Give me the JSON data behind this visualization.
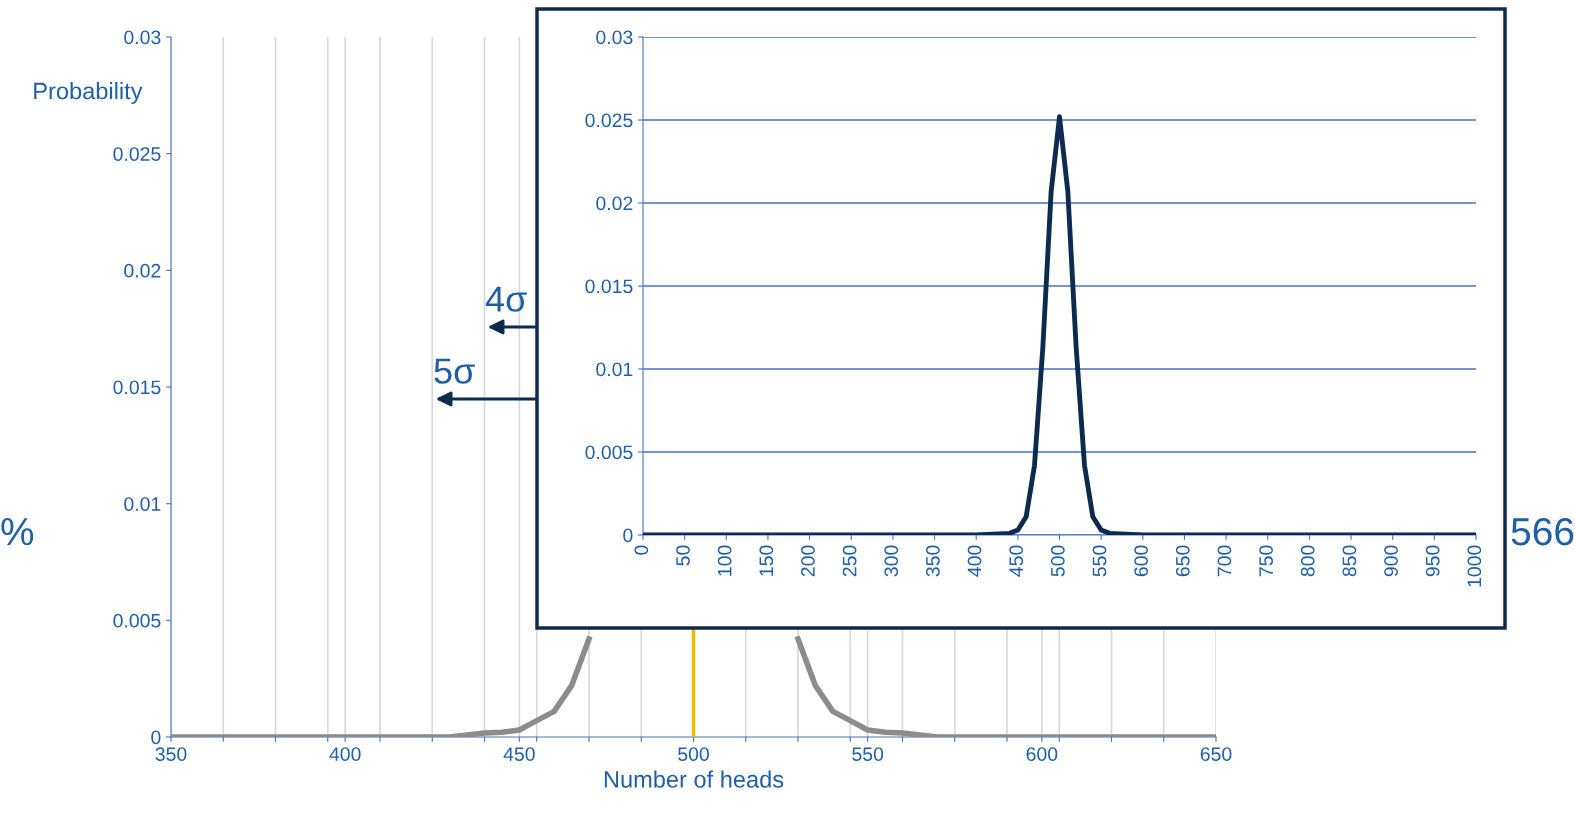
{
  "chart_data": [
    {
      "type": "line",
      "xlabel": "Number of heads",
      "ylabel": "Probability",
      "grid": "x",
      "legend": false,
      "x": [
        350,
        400,
        430,
        440,
        445,
        450,
        455,
        460,
        465,
        470,
        475,
        480,
        485,
        490,
        495,
        500,
        505,
        510,
        515,
        520,
        525,
        530,
        535,
        540,
        545,
        550,
        555,
        560,
        570,
        600,
        650
      ],
      "series": [
        {
          "color": "#8c8c8c",
          "values": [
            0,
            0,
            0,
            0.00017,
            0.0002,
            0.0003,
            0.0007,
            0.0011,
            0.0022,
            0.0042,
            null,
            null,
            null,
            null,
            null,
            null,
            null,
            null,
            null,
            null,
            null,
            0.0042,
            0.0022,
            0.0011,
            0.0007,
            0.0003,
            0.0002,
            0.00017,
            0,
            0,
            0
          ]
        }
      ],
      "xlim": [
        350,
        650
      ],
      "xticks": [
        {
          "value": 350,
          "label": "350"
        },
        {
          "value": 365,
          "label": null
        },
        {
          "value": 380,
          "label": null
        },
        {
          "value": 395,
          "label": null
        },
        {
          "value": 400,
          "label": "400"
        },
        {
          "value": 410,
          "label": null
        },
        {
          "value": 425,
          "label": null
        },
        {
          "value": 440,
          "label": null
        },
        {
          "value": 450,
          "label": "450"
        },
        {
          "value": 455,
          "label": null
        },
        {
          "value": 470,
          "label": null
        },
        {
          "value": 485,
          "label": null
        },
        {
          "value": 500,
          "label": "500"
        },
        {
          "value": 515,
          "label": null
        },
        {
          "value": 530,
          "label": null
        },
        {
          "value": 545,
          "label": null
        },
        {
          "value": 550,
          "label": "550"
        },
        {
          "value": 560,
          "label": null
        },
        {
          "value": 575,
          "label": null
        },
        {
          "value": 590,
          "label": null
        },
        {
          "value": 600,
          "label": "600"
        },
        {
          "value": 605,
          "label": null
        },
        {
          "value": 620,
          "label": null
        },
        {
          "value": 635,
          "label": null
        },
        {
          "value": 650,
          "label": "650"
        }
      ],
      "ylim": [
        0,
        0.03
      ],
      "yticks": [
        0,
        0.005,
        0.01,
        0.015,
        0.02,
        0.025,
        0.03
      ],
      "ref_lines": [
        {
          "axis": "x",
          "value": 500,
          "color": "#f5b800"
        }
      ],
      "annotations": [
        "4σ",
        "5σ",
        "%",
        "566"
      ]
    },
    {
      "type": "line",
      "grid": "y",
      "legend": false,
      "x": [
        0,
        400,
        440,
        450,
        460,
        470,
        480,
        490,
        500,
        510,
        520,
        530,
        540,
        550,
        560,
        600,
        1000
      ],
      "series": [
        {
          "color": "#0d2b4f",
          "values": [
            0,
            0,
            0.0001,
            0.0003,
            0.0011,
            0.0042,
            0.0113,
            0.0207,
            0.0252,
            0.0207,
            0.0113,
            0.0042,
            0.0011,
            0.0003,
            0.0001,
            0,
            0
          ]
        }
      ],
      "xlim": [
        0,
        1000
      ],
      "xticks": [
        0,
        50,
        100,
        150,
        200,
        250,
        300,
        350,
        400,
        450,
        500,
        550,
        600,
        650,
        700,
        750,
        800,
        850,
        900,
        950,
        1000
      ],
      "ylim": [
        0,
        0.03
      ],
      "yticks": [
        0,
        0.005,
        0.01,
        0.015,
        0.02,
        0.025,
        0.03
      ]
    }
  ]
}
